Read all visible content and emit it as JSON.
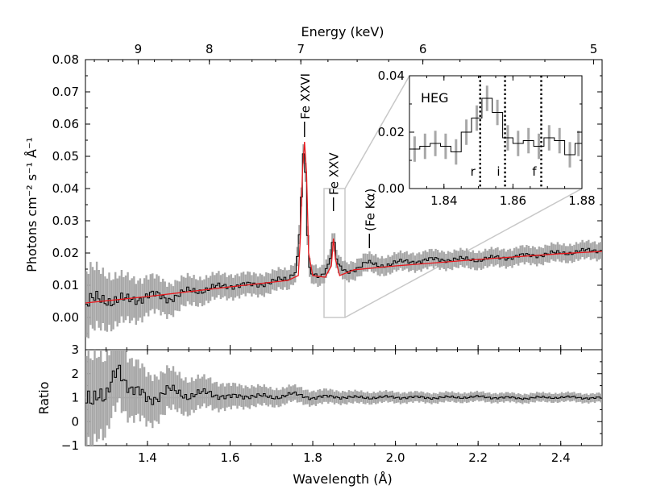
{
  "chart_data": [
    {
      "id": "spectrum",
      "type": "line",
      "xlabel": "Wavelength (Å)",
      "ylabel": "Photons cm⁻² s⁻¹ Å⁻¹",
      "top_axis_label": "Energy (keV)",
      "xlim": [
        1.25,
        2.5
      ],
      "ylim": [
        -0.01,
        0.08
      ],
      "xticks": [
        1.4,
        1.6,
        1.8,
        2.0,
        2.2,
        2.4
      ],
      "yticks": [
        0.0,
        0.01,
        0.02,
        0.03,
        0.04,
        0.05,
        0.06,
        0.07,
        0.08
      ],
      "top_ticks_keV": [
        9,
        8,
        7,
        6,
        5
      ],
      "series": [
        {
          "role": "data",
          "style": "step",
          "color": "#000000",
          "points": [
            [
              1.25,
              0.004
            ],
            [
              1.3,
              0.006
            ],
            [
              1.35,
              0.005
            ],
            [
              1.4,
              0.007
            ],
            [
              1.45,
              0.006
            ],
            [
              1.5,
              0.008
            ],
            [
              1.55,
              0.009
            ],
            [
              1.6,
              0.01
            ],
            [
              1.65,
              0.01
            ],
            [
              1.7,
              0.011
            ],
            [
              1.74,
              0.012
            ],
            [
              1.76,
              0.015
            ],
            [
              1.77,
              0.03
            ],
            [
              1.775,
              0.045
            ],
            [
              1.78,
              0.055
            ],
            [
              1.785,
              0.035
            ],
            [
              1.79,
              0.015
            ],
            [
              1.8,
              0.013
            ],
            [
              1.82,
              0.013
            ],
            [
              1.84,
              0.017
            ],
            [
              1.85,
              0.025
            ],
            [
              1.86,
              0.016
            ],
            [
              1.88,
              0.014
            ],
            [
              1.9,
              0.015
            ],
            [
              1.93,
              0.017
            ],
            [
              1.96,
              0.016
            ],
            [
              2.0,
              0.017
            ],
            [
              2.1,
              0.018
            ],
            [
              2.2,
              0.018
            ],
            [
              2.3,
              0.019
            ],
            [
              2.4,
              0.02
            ],
            [
              2.5,
              0.021
            ]
          ]
        },
        {
          "role": "model",
          "style": "line",
          "color": "#e8171c",
          "points": [
            [
              1.25,
              0.0045
            ],
            [
              1.4,
              0.0065
            ],
            [
              1.6,
              0.0095
            ],
            [
              1.74,
              0.0115
            ],
            [
              1.765,
              0.013
            ],
            [
              1.77,
              0.025
            ],
            [
              1.775,
              0.045
            ],
            [
              1.78,
              0.0545
            ],
            [
              1.785,
              0.045
            ],
            [
              1.79,
              0.02
            ],
            [
              1.8,
              0.013
            ],
            [
              1.83,
              0.0125
            ],
            [
              1.845,
              0.016
            ],
            [
              1.85,
              0.0245
            ],
            [
              1.855,
              0.018
            ],
            [
              1.865,
              0.013
            ],
            [
              1.9,
              0.0148
            ],
            [
              2.0,
              0.016
            ],
            [
              2.2,
              0.018
            ],
            [
              2.4,
              0.0198
            ],
            [
              2.5,
              0.0205
            ]
          ]
        }
      ],
      "annotations": [
        {
          "text": "Fe XXVI",
          "x": 1.78
        },
        {
          "text": "Fe XXV",
          "x": 1.85
        },
        {
          "text": "(Fe Kα)",
          "x": 1.937
        }
      ]
    },
    {
      "id": "ratio",
      "type": "line",
      "xlabel": "Wavelength (Å)",
      "ylabel": "Ratio",
      "xlim": [
        1.25,
        2.5
      ],
      "ylim": [
        -1,
        3
      ],
      "yticks": [
        -1,
        0,
        1,
        2,
        3
      ],
      "reference_line": 1,
      "series": [
        {
          "role": "data",
          "style": "step",
          "color": "#000000",
          "points": [
            [
              1.25,
              0.9
            ],
            [
              1.28,
              1.4
            ],
            [
              1.3,
              0.8
            ],
            [
              1.33,
              2.3
            ],
            [
              1.36,
              1.4
            ],
            [
              1.4,
              0.9
            ],
            [
              1.45,
              1.3
            ],
            [
              1.5,
              1.1
            ],
            [
              1.55,
              1.2
            ],
            [
              1.6,
              1.0
            ],
            [
              1.65,
              1.1
            ],
            [
              1.7,
              1.0
            ],
            [
              1.75,
              1.15
            ],
            [
              1.8,
              1.0
            ],
            [
              1.85,
              1.05
            ],
            [
              1.9,
              1.0
            ],
            [
              2.0,
              1.02
            ],
            [
              2.1,
              1.0
            ],
            [
              2.2,
              1.03
            ],
            [
              2.3,
              0.98
            ],
            [
              2.4,
              1.02
            ],
            [
              2.5,
              0.98
            ]
          ]
        }
      ]
    },
    {
      "id": "inset",
      "type": "line",
      "inset_label": "HEG",
      "xlim": [
        1.83,
        1.88
      ],
      "ylim": [
        0.0,
        0.04
      ],
      "xticks": [
        1.84,
        1.86,
        1.88
      ],
      "yticks": [
        0.0,
        0.02,
        0.04
      ],
      "series": [
        {
          "role": "data",
          "style": "step",
          "color": "#000000",
          "points": [
            [
              1.83,
              0.014
            ],
            [
              1.833,
              0.015
            ],
            [
              1.836,
              0.016
            ],
            [
              1.839,
              0.015
            ],
            [
              1.842,
              0.013
            ],
            [
              1.845,
              0.02
            ],
            [
              1.848,
              0.025
            ],
            [
              1.851,
              0.032
            ],
            [
              1.854,
              0.027
            ],
            [
              1.857,
              0.018
            ],
            [
              1.86,
              0.016
            ],
            [
              1.863,
              0.017
            ],
            [
              1.866,
              0.015
            ],
            [
              1.869,
              0.018
            ],
            [
              1.872,
              0.017
            ],
            [
              1.875,
              0.012
            ],
            [
              1.878,
              0.016
            ],
            [
              1.88,
              0.016
            ]
          ]
        }
      ],
      "lines": [
        {
          "label": "r",
          "x": 1.8505
        },
        {
          "label": "i",
          "x": 1.8577
        },
        {
          "label": "f",
          "x": 1.8682
        }
      ]
    }
  ]
}
